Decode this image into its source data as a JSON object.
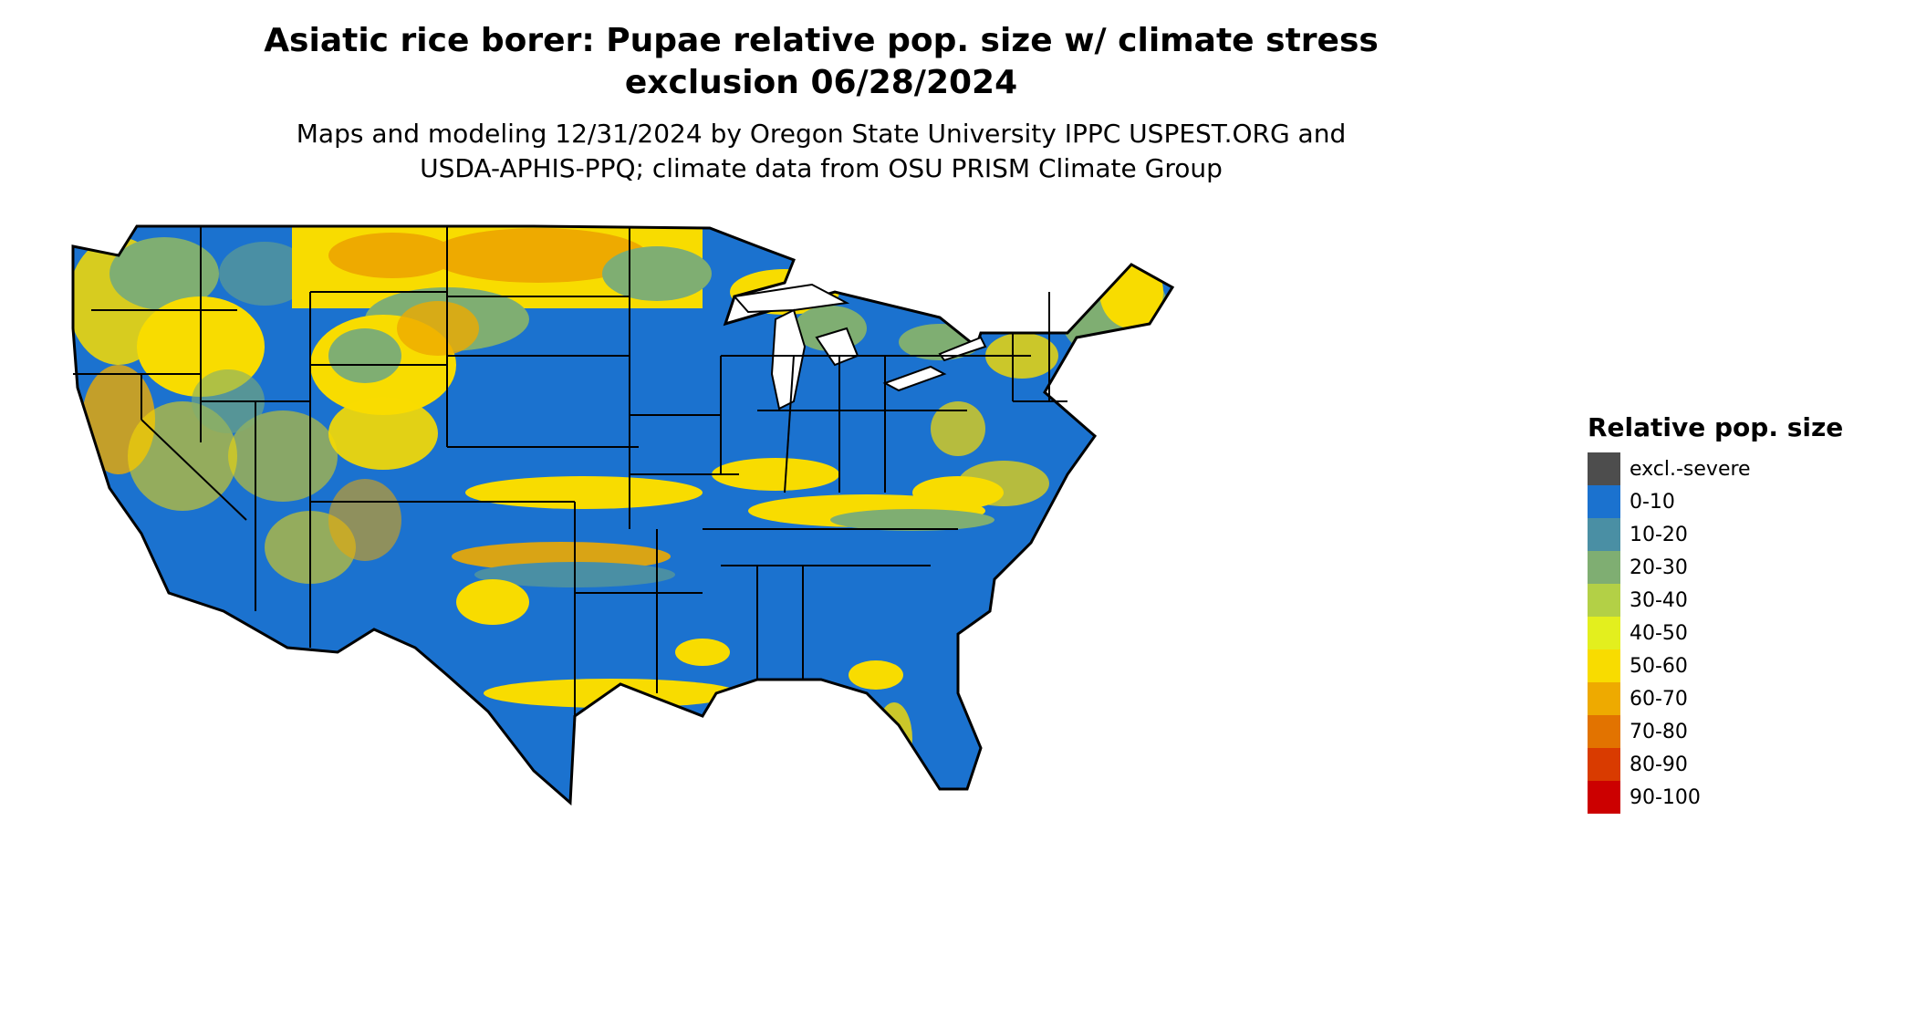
{
  "map": {
    "title_line1": "Asiatic rice borer: Pupae relative pop. size w/ climate stress",
    "title_line2": "exclusion 06/28/2024",
    "subtitle_line1": "Maps and modeling 12/31/2024 by Oregon State University IPPC USPEST.ORG and",
    "subtitle_line2": "USDA-APHIS-PPQ; climate data from OSU PRISM Climate Group",
    "region": "Contiguous United States",
    "border_color": "#000000"
  },
  "legend": {
    "title": "Relative pop. size",
    "items": [
      {
        "label": "excl.-severe",
        "color": "#4d4d4d"
      },
      {
        "label": "0-10",
        "color": "#1b72cf"
      },
      {
        "label": "10-20",
        "color": "#4a8fa4"
      },
      {
        "label": "20-30",
        "color": "#7fae72"
      },
      {
        "label": "30-40",
        "color": "#b3d046"
      },
      {
        "label": "40-50",
        "color": "#e3ef1e"
      },
      {
        "label": "50-60",
        "color": "#f8dc00"
      },
      {
        "label": "60-70",
        "color": "#eeaa00"
      },
      {
        "label": "70-80",
        "color": "#e27300"
      },
      {
        "label": "80-90",
        "color": "#d93b00"
      },
      {
        "label": "90-100",
        "color": "#cc0000"
      }
    ]
  }
}
